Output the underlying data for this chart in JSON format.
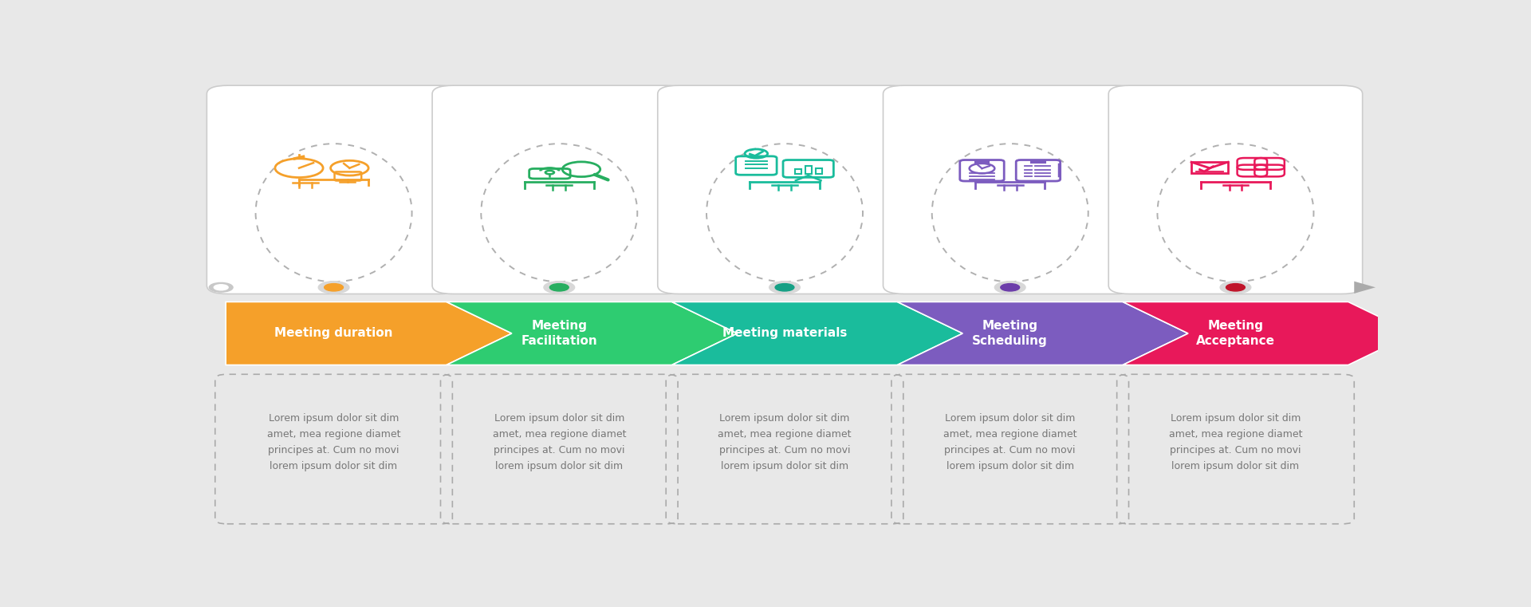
{
  "background_color": "#e8e8e8",
  "steps": [
    {
      "title_lines": [
        "Meeting duration"
      ],
      "color": "#f5a02a",
      "dot_color": "#f5a02a",
      "icon_color": "#f5a02a",
      "text": "Lorem ipsum dolor sit dim\namet, mea regione diamet\nprincipes at. Cum no movi\nlorem ipsum dolor sit dim"
    },
    {
      "title_lines": [
        "Meeting",
        "Facilitation"
      ],
      "color": "#2ecc71",
      "dot_color": "#27ae60",
      "icon_color": "#27ae60",
      "text": "Lorem ipsum dolor sit dim\namet, mea regione diamet\nprincipes at. Cum no movi\nlorem ipsum dolor sit dim"
    },
    {
      "title_lines": [
        "Meeting materials"
      ],
      "color": "#1abc9c",
      "dot_color": "#16a085",
      "icon_color": "#1abc9c",
      "text": "Lorem ipsum dolor sit dim\namet, mea regione diamet\nprincipes at. Cum no movi\nlorem ipsum dolor sit dim"
    },
    {
      "title_lines": [
        "Meeting",
        "Scheduling"
      ],
      "color": "#7c5cbf",
      "dot_color": "#6c3daa",
      "icon_color": "#7c5cbf",
      "text": "Lorem ipsum dolor sit dim\namet, mea regione diamet\nprincipes at. Cum no movi\nlorem ipsum dolor sit dim"
    },
    {
      "title_lines": [
        "Meeting",
        "Acceptance"
      ],
      "color": "#e8185a",
      "dot_color": "#c0152a",
      "icon_color": "#e8185a",
      "text": "Lorem ipsum dolor sit dim\namet, mea regione diamet\nprincipes at. Cum no movi\nlorem ipsum dolor sit dim"
    }
  ]
}
